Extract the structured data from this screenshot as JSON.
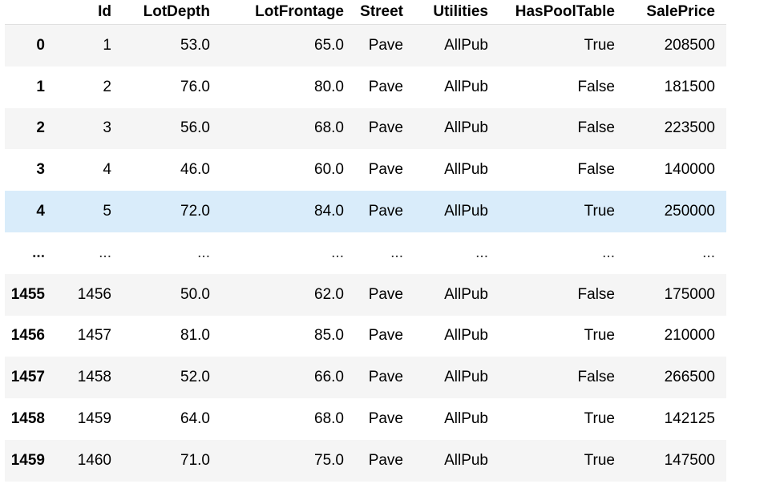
{
  "table": {
    "columns": [
      "",
      "Id",
      "LotDepth",
      "LotFrontage",
      "Street",
      "Utilities",
      "HasPoolTable",
      "SalePrice"
    ],
    "rows": [
      {
        "index": "0",
        "Id": "1",
        "LotDepth": "53.0",
        "LotFrontage": "65.0",
        "Street": "Pave",
        "Utilities": "AllPub",
        "HasPoolTable": "True",
        "SalePrice": "208500"
      },
      {
        "index": "1",
        "Id": "2",
        "LotDepth": "76.0",
        "LotFrontage": "80.0",
        "Street": "Pave",
        "Utilities": "AllPub",
        "HasPoolTable": "False",
        "SalePrice": "181500"
      },
      {
        "index": "2",
        "Id": "3",
        "LotDepth": "56.0",
        "LotFrontage": "68.0",
        "Street": "Pave",
        "Utilities": "AllPub",
        "HasPoolTable": "False",
        "SalePrice": "223500"
      },
      {
        "index": "3",
        "Id": "4",
        "LotDepth": "46.0",
        "LotFrontage": "60.0",
        "Street": "Pave",
        "Utilities": "AllPub",
        "HasPoolTable": "False",
        "SalePrice": "140000"
      },
      {
        "index": "4",
        "Id": "5",
        "LotDepth": "72.0",
        "LotFrontage": "84.0",
        "Street": "Pave",
        "Utilities": "AllPub",
        "HasPoolTable": "True",
        "SalePrice": "250000"
      },
      {
        "index": "...",
        "Id": "...",
        "LotDepth": "...",
        "LotFrontage": "...",
        "Street": "...",
        "Utilities": "...",
        "HasPoolTable": "...",
        "SalePrice": "..."
      },
      {
        "index": "1455",
        "Id": "1456",
        "LotDepth": "50.0",
        "LotFrontage": "62.0",
        "Street": "Pave",
        "Utilities": "AllPub",
        "HasPoolTable": "False",
        "SalePrice": "175000"
      },
      {
        "index": "1456",
        "Id": "1457",
        "LotDepth": "81.0",
        "LotFrontage": "85.0",
        "Street": "Pave",
        "Utilities": "AllPub",
        "HasPoolTable": "True",
        "SalePrice": "210000"
      },
      {
        "index": "1457",
        "Id": "1458",
        "LotDepth": "52.0",
        "LotFrontage": "66.0",
        "Street": "Pave",
        "Utilities": "AllPub",
        "HasPoolTable": "False",
        "SalePrice": "266500"
      },
      {
        "index": "1458",
        "Id": "1459",
        "LotDepth": "64.0",
        "LotFrontage": "68.0",
        "Street": "Pave",
        "Utilities": "AllPub",
        "HasPoolTable": "True",
        "SalePrice": "142125"
      },
      {
        "index": "1459",
        "Id": "1460",
        "LotDepth": "71.0",
        "LotFrontage": "75.0",
        "Street": "Pave",
        "Utilities": "AllPub",
        "HasPoolTable": "True",
        "SalePrice": "147500"
      }
    ],
    "highlighted_row_index": "4"
  },
  "colors": {
    "row_stripe": "#f5f5f5",
    "row_highlight": "#d9ecfa",
    "row_plain": "#ffffff"
  }
}
